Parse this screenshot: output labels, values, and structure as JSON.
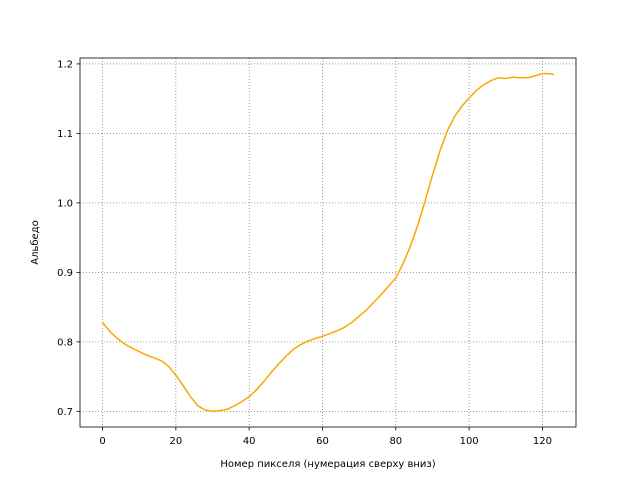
{
  "chart_data": {
    "type": "line",
    "title": "",
    "xlabel": "Номер пикселя (нумерация сверху вниз)",
    "ylabel": "Альбедо",
    "xlim": [
      -6.15,
      129.15
    ],
    "ylim": [
      0.6775,
      1.2085
    ],
    "xticks": [
      0,
      20,
      40,
      60,
      80,
      100,
      120
    ],
    "yticks": [
      0.7,
      0.8,
      0.9,
      1.0,
      1.1,
      1.2
    ],
    "ytick_labels": [
      "0.7",
      "0.8",
      "0.9",
      "1.0",
      "1.1",
      "1.2"
    ],
    "grid": true,
    "legend": "none",
    "series": [
      {
        "color": "#FFA500",
        "x": [
          0,
          2,
          4,
          6,
          8,
          10,
          12,
          14,
          16,
          18,
          20,
          22,
          24,
          26,
          28,
          30,
          32,
          34,
          36,
          38,
          40,
          42,
          44,
          46,
          48,
          50,
          52,
          54,
          56,
          58,
          60,
          62,
          64,
          66,
          68,
          70,
          72,
          74,
          76,
          78,
          80,
          82,
          84,
          86,
          88,
          90,
          92,
          94,
          96,
          98,
          100,
          102,
          104,
          106,
          108,
          110,
          112,
          114,
          116,
          118,
          120,
          122,
          123
        ],
        "y": [
          0.828,
          0.815,
          0.805,
          0.797,
          0.791,
          0.786,
          0.781,
          0.777,
          0.773,
          0.765,
          0.752,
          0.737,
          0.721,
          0.708,
          0.702,
          0.7,
          0.701,
          0.703,
          0.708,
          0.714,
          0.721,
          0.731,
          0.743,
          0.756,
          0.768,
          0.779,
          0.789,
          0.796,
          0.801,
          0.805,
          0.808,
          0.812,
          0.816,
          0.821,
          0.828,
          0.837,
          0.846,
          0.857,
          0.868,
          0.88,
          0.892,
          0.913,
          0.938,
          0.968,
          1.003,
          1.04,
          1.074,
          1.103,
          1.124,
          1.139,
          1.151,
          1.162,
          1.17,
          1.176,
          1.18,
          1.179,
          1.181,
          1.18,
          1.18,
          1.183,
          1.186,
          1.186,
          1.185
        ]
      }
    ]
  }
}
